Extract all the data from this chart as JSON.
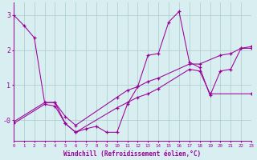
{
  "xlabel": "Windchill (Refroidissement éolien,°C)",
  "background_color": "#d8eef0",
  "line_color": "#990099",
  "grid_color": "#aacccc",
  "xlim": [
    0,
    23
  ],
  "ylim": [
    -0.6,
    3.3
  ],
  "series1_x": [
    0,
    1,
    2,
    3,
    4,
    5,
    6,
    7,
    8,
    9,
    10,
    11,
    12,
    13,
    14,
    15,
    16,
    17,
    18,
    19,
    20,
    21,
    22,
    23
  ],
  "series1_y": [
    3.0,
    2.7,
    2.35,
    0.5,
    0.5,
    -0.1,
    -0.35,
    -0.25,
    -0.18,
    -0.35,
    -0.35,
    0.45,
    0.95,
    1.85,
    1.9,
    2.8,
    3.1,
    1.65,
    1.5,
    0.7,
    1.4,
    1.45,
    2.05,
    2.05
  ],
  "series2_x": [
    0,
    3,
    4,
    5,
    6,
    10,
    11,
    12,
    13,
    14,
    17,
    18,
    20,
    21,
    22,
    23
  ],
  "series2_y": [
    -0.05,
    0.5,
    0.5,
    0.1,
    -0.15,
    0.65,
    0.85,
    0.95,
    1.1,
    1.2,
    1.6,
    1.6,
    1.85,
    1.9,
    2.05,
    2.1
  ],
  "series3_x": [
    0,
    3,
    4,
    5,
    6,
    10,
    11,
    12,
    13,
    14,
    17,
    18,
    19,
    23
  ],
  "series3_y": [
    -0.1,
    0.45,
    0.4,
    -0.1,
    -0.35,
    0.35,
    0.5,
    0.65,
    0.75,
    0.9,
    1.45,
    1.4,
    0.75,
    0.75
  ]
}
